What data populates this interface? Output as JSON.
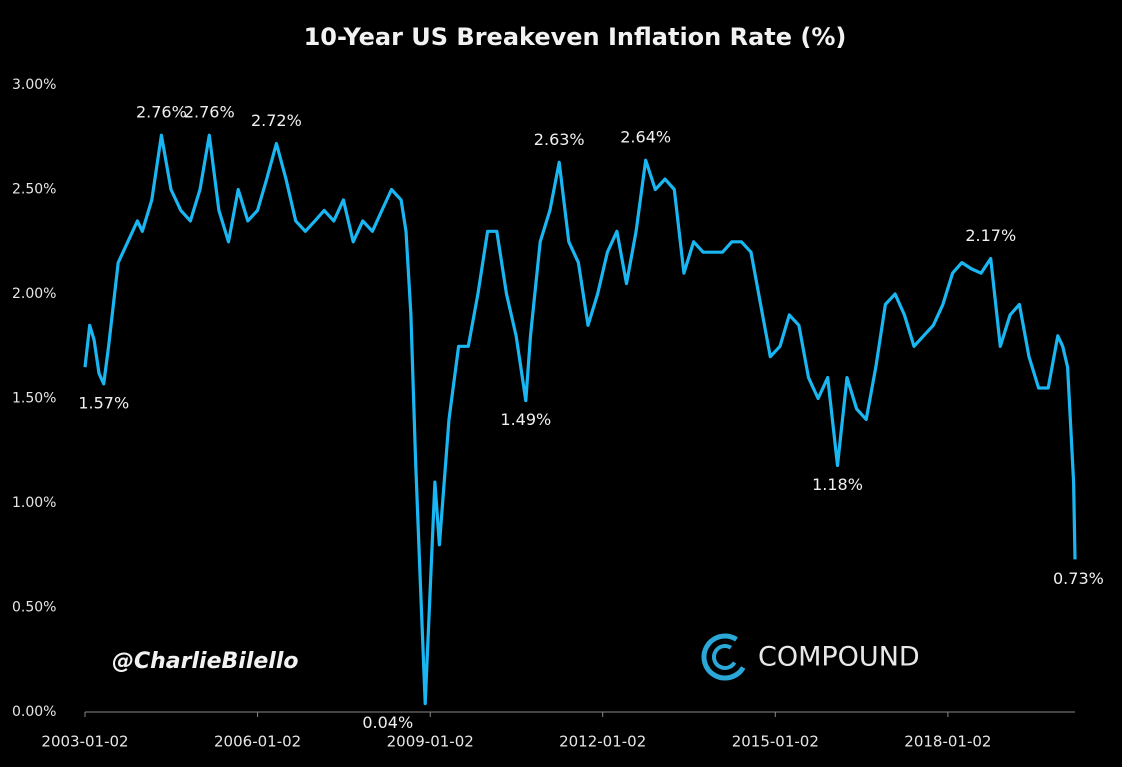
{
  "chart_data": {
    "type": "line",
    "title": "10-Year US Breakeven Inflation Rate (%)",
    "x": [
      "2003-01-02",
      "2003-02-01",
      "2003-03-01",
      "2003-04-01",
      "2003-05-01",
      "2003-06-01",
      "2003-08-01",
      "2003-10-01",
      "2003-12-01",
      "2004-01-01",
      "2004-03-01",
      "2004-05-01",
      "2004-07-01",
      "2004-09-01",
      "2004-11-01",
      "2005-01-01",
      "2005-03-01",
      "2005-05-01",
      "2005-07-01",
      "2005-09-01",
      "2005-11-01",
      "2006-01-01",
      "2006-03-01",
      "2006-05-01",
      "2006-07-01",
      "2006-09-01",
      "2006-11-01",
      "2007-01-01",
      "2007-03-01",
      "2007-05-01",
      "2007-07-01",
      "2007-09-01",
      "2007-11-01",
      "2008-01-01",
      "2008-03-01",
      "2008-05-01",
      "2008-07-01",
      "2008-08-01",
      "2008-09-01",
      "2008-10-01",
      "2008-11-01",
      "2008-12-01",
      "2009-02-01",
      "2009-03-01",
      "2009-05-01",
      "2009-07-01",
      "2009-09-01",
      "2009-11-01",
      "2010-01-01",
      "2010-03-01",
      "2010-05-01",
      "2010-07-01",
      "2010-09-01",
      "2010-10-01",
      "2010-12-01",
      "2011-02-01",
      "2011-04-01",
      "2011-06-01",
      "2011-08-01",
      "2011-10-01",
      "2011-12-01",
      "2012-02-01",
      "2012-04-01",
      "2012-06-01",
      "2012-08-01",
      "2012-10-01",
      "2012-12-01",
      "2013-02-01",
      "2013-04-01",
      "2013-06-01",
      "2013-08-01",
      "2013-10-01",
      "2013-12-01",
      "2014-02-01",
      "2014-04-01",
      "2014-06-01",
      "2014-08-01",
      "2014-10-01",
      "2014-12-01",
      "2015-02-01",
      "2015-04-01",
      "2015-06-01",
      "2015-08-01",
      "2015-10-01",
      "2015-12-01",
      "2016-02-01",
      "2016-04-01",
      "2016-06-01",
      "2016-08-01",
      "2016-10-01",
      "2016-12-01",
      "2017-02-01",
      "2017-04-01",
      "2017-06-01",
      "2017-08-01",
      "2017-10-01",
      "2017-12-01",
      "2018-02-01",
      "2018-04-01",
      "2018-06-01",
      "2018-08-01",
      "2018-10-01",
      "2018-12-01",
      "2019-02-01",
      "2019-04-01",
      "2019-06-01",
      "2019-08-01",
      "2019-10-01",
      "2019-12-01",
      "2020-01-01",
      "2020-02-01",
      "2020-03-10",
      "2020-03-19"
    ],
    "values": [
      1.65,
      1.85,
      1.78,
      1.62,
      1.57,
      1.75,
      2.15,
      2.25,
      2.35,
      2.3,
      2.45,
      2.76,
      2.5,
      2.4,
      2.35,
      2.5,
      2.76,
      2.4,
      2.25,
      2.5,
      2.35,
      2.4,
      2.55,
      2.72,
      2.55,
      2.35,
      2.3,
      2.35,
      2.4,
      2.35,
      2.45,
      2.25,
      2.35,
      2.3,
      2.4,
      2.5,
      2.45,
      2.3,
      1.9,
      1.2,
      0.6,
      0.04,
      1.1,
      0.8,
      1.4,
      1.75,
      1.75,
      2.0,
      2.3,
      2.3,
      2.0,
      1.8,
      1.49,
      1.8,
      2.25,
      2.4,
      2.63,
      2.25,
      2.15,
      1.85,
      2.0,
      2.2,
      2.3,
      2.05,
      2.3,
      2.64,
      2.5,
      2.55,
      2.5,
      2.1,
      2.25,
      2.2,
      2.2,
      2.2,
      2.25,
      2.25,
      2.2,
      1.95,
      1.7,
      1.75,
      1.9,
      1.85,
      1.6,
      1.5,
      1.6,
      1.18,
      1.6,
      1.45,
      1.4,
      1.65,
      1.95,
      2.0,
      1.9,
      1.75,
      1.8,
      1.85,
      1.95,
      2.1,
      2.15,
      2.12,
      2.1,
      2.17,
      1.75,
      1.9,
      1.95,
      1.7,
      1.55,
      1.55,
      1.8,
      1.75,
      1.65,
      1.1,
      0.73
    ],
    "value_labels": [
      null,
      null,
      null,
      null,
      "1.57%",
      null,
      null,
      null,
      null,
      null,
      null,
      "2.76%",
      null,
      null,
      null,
      null,
      "2.76%",
      null,
      null,
      null,
      null,
      null,
      null,
      "2.72%",
      null,
      null,
      null,
      null,
      null,
      null,
      null,
      null,
      null,
      null,
      null,
      null,
      null,
      null,
      null,
      null,
      null,
      "0.04%",
      null,
      null,
      null,
      null,
      null,
      null,
      null,
      null,
      null,
      null,
      "1.49%",
      null,
      null,
      null,
      "2.63%",
      null,
      null,
      null,
      null,
      null,
      null,
      null,
      null,
      "2.64%",
      null,
      null,
      null,
      null,
      null,
      null,
      null,
      null,
      null,
      null,
      null,
      null,
      null,
      null,
      null,
      null,
      null,
      null,
      null,
      "1.18%",
      null,
      null,
      null,
      null,
      null,
      null,
      null,
      null,
      null,
      null,
      null,
      null,
      null,
      null,
      null,
      "2.17%",
      null,
      null,
      null,
      null,
      null,
      null,
      null,
      null,
      null,
      null,
      "0.73%"
    ],
    "color": "#19b6f2",
    "xlim": [
      "2003-01-02",
      "2020-03-19"
    ],
    "xticks": [
      "2003-01-02",
      "2006-01-02",
      "2009-01-02",
      "2012-01-02",
      "2015-01-02",
      "2018-01-02"
    ],
    "ylim": [
      0,
      3
    ],
    "yticks": [
      {
        "value": 0,
        "label": "0.00%"
      },
      {
        "value": 0.5,
        "label": "0.50%"
      },
      {
        "value": 1,
        "label": "1.00%"
      },
      {
        "value": 1.5,
        "label": "1.50%"
      },
      {
        "value": 2,
        "label": "2.00%"
      },
      {
        "value": 2.5,
        "label": "2.50%"
      },
      {
        "value": 3,
        "label": "3.00%"
      }
    ],
    "grid": false,
    "credit": "@CharlieBilello",
    "logo_text": "COMPOUND"
  }
}
